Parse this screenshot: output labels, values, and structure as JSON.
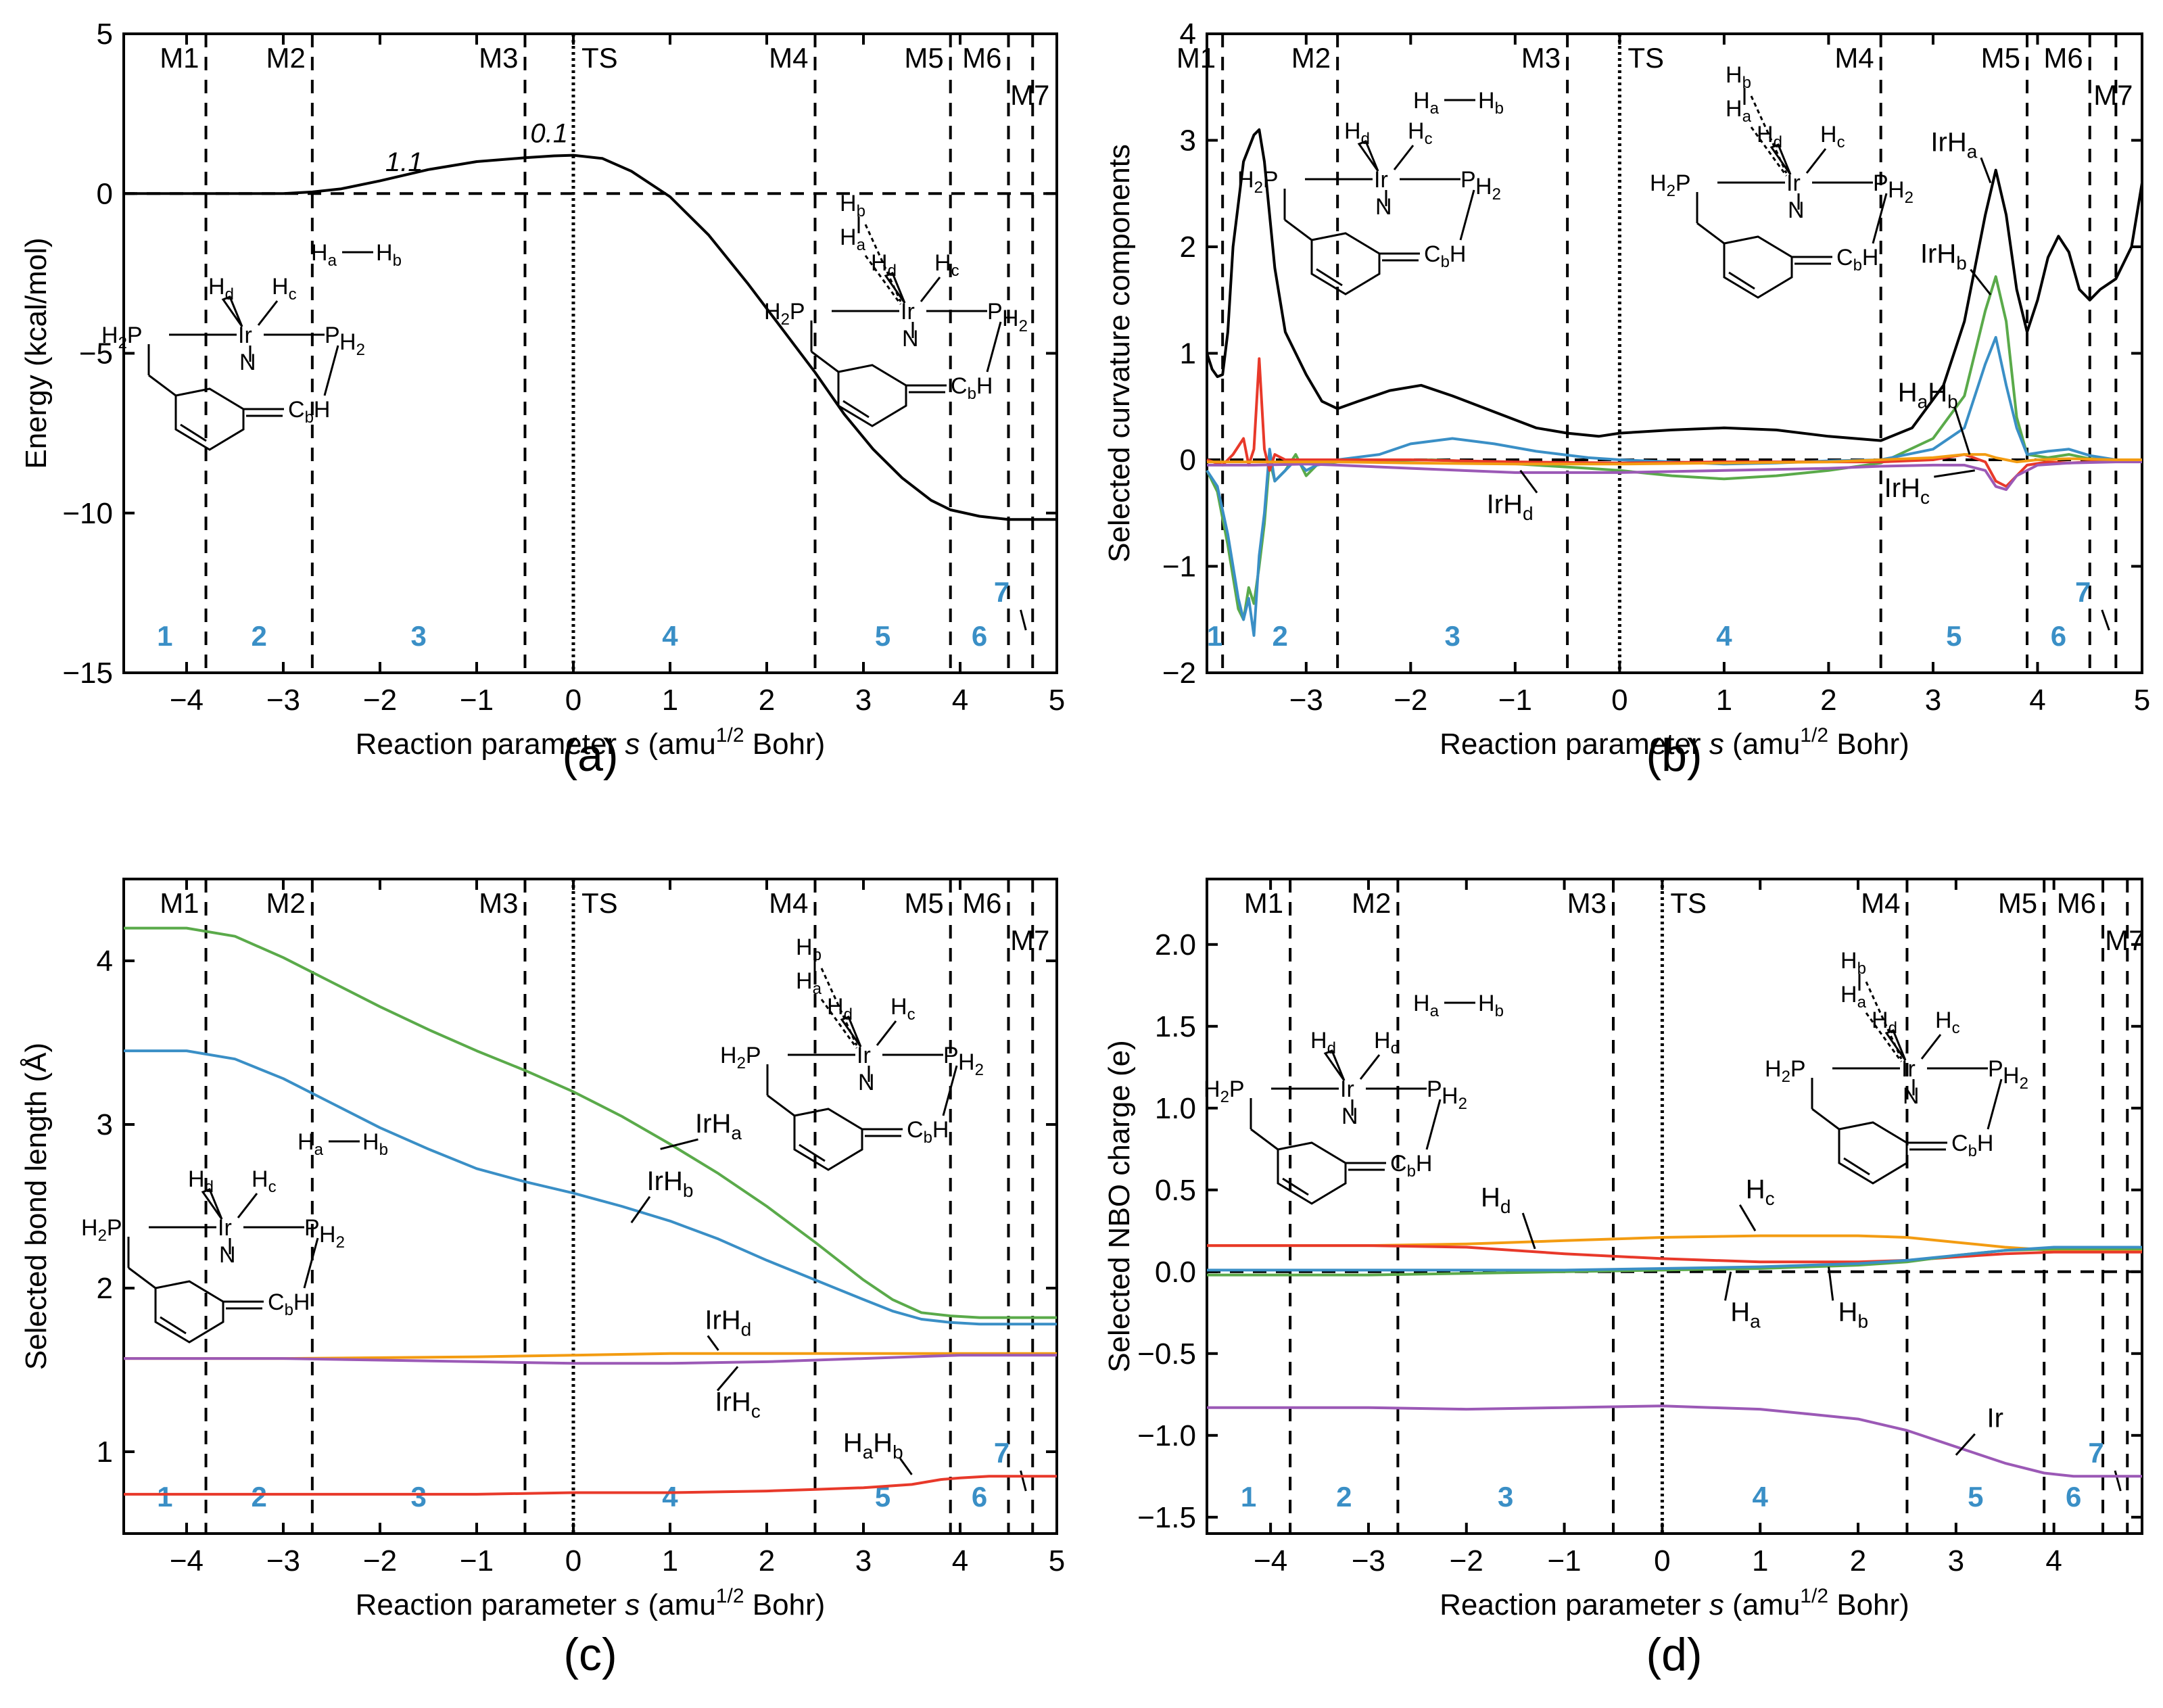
{
  "figure": {
    "panel_labels": [
      "(a)",
      "(b)",
      "(c)",
      "(d)"
    ],
    "xlabel": "Reaction parameter s (amu1/2 Bohr)",
    "xlabel_parts": {
      "pre": "Reaction parameter ",
      "s": "s",
      "mid": " (amu",
      "sup": "1/2",
      "post": " Bohr)"
    },
    "points_labels": [
      "M1",
      "M2",
      "M3",
      "TS",
      "M4",
      "M5",
      "M6",
      "M7"
    ],
    "region_labels": [
      "1",
      "2",
      "3",
      "4",
      "5",
      "6",
      "7"
    ],
    "hh_label": "Ha—Hb",
    "mol_text": {
      "H": "H",
      "Ir": "Ir",
      "N": "N",
      "P": "P",
      "C": "C"
    }
  },
  "chart_data": [
    {
      "panel": "(a)",
      "type": "line",
      "ylabel": "Energy (kcal/mol)",
      "xlim": [
        -4.65,
        5
      ],
      "ylim": [
        -15,
        5
      ],
      "xticks": [
        -4,
        -3,
        -2,
        -1,
        0,
        1,
        2,
        3,
        4,
        5
      ],
      "yticks": [
        -15,
        -10,
        -5,
        0,
        5
      ],
      "boundaries": {
        "M1": -3.8,
        "M2": -2.7,
        "M3": -0.5,
        "TS": 0,
        "M4": 2.5,
        "M5": 3.9,
        "M6": 4.5,
        "M7": 4.75
      },
      "annotations": [
        {
          "text": "1.1",
          "x": -1.75,
          "y": 0.7
        },
        {
          "text": "0.1",
          "x": -0.25,
          "y": 1.6
        }
      ],
      "series": [
        {
          "name": "Energy",
          "color": "#000000",
          "x": [
            -4.65,
            -4.0,
            -3.5,
            -3.0,
            -2.7,
            -2.4,
            -2.0,
            -1.5,
            -1.0,
            -0.5,
            -0.2,
            0.0,
            0.3,
            0.6,
            1.0,
            1.4,
            1.8,
            2.2,
            2.5,
            2.8,
            3.1,
            3.4,
            3.7,
            3.9,
            4.2,
            4.5,
            4.75,
            5.0
          ],
          "y": [
            0.0,
            0.0,
            0.0,
            0.0,
            0.05,
            0.15,
            0.4,
            0.75,
            1.0,
            1.12,
            1.18,
            1.2,
            1.1,
            0.7,
            -0.1,
            -1.3,
            -2.8,
            -4.4,
            -5.6,
            -6.9,
            -8.0,
            -8.9,
            -9.6,
            -9.9,
            -10.1,
            -10.2,
            -10.2,
            -10.2
          ]
        }
      ]
    },
    {
      "panel": "(b)",
      "type": "line",
      "ylabel": "Selected curvature components",
      "xlim": [
        -3.95,
        5
      ],
      "ylim": [
        -2,
        4
      ],
      "xticks": [
        -3,
        -2,
        -1,
        0,
        1,
        2,
        3,
        4,
        5
      ],
      "yticks": [
        -2,
        -1,
        0,
        1,
        2,
        3,
        4
      ],
      "boundaries": {
        "M1": -3.8,
        "M2": -2.7,
        "M3": -0.5,
        "TS": 0,
        "M4": 2.5,
        "M5": 3.9,
        "M6": 4.5,
        "M7": 4.75
      },
      "curve_labels": [
        "IrHa",
        "IrHb",
        "HaHb",
        "IrHc",
        "IrHd"
      ],
      "series": [
        {
          "name": "Total",
          "color": "#000000",
          "x": [
            -3.95,
            -3.9,
            -3.85,
            -3.8,
            -3.75,
            -3.7,
            -3.6,
            -3.5,
            -3.45,
            -3.4,
            -3.3,
            -3.2,
            -3.0,
            -2.85,
            -2.7,
            -2.5,
            -2.2,
            -1.9,
            -1.6,
            -1.2,
            -0.8,
            -0.5,
            -0.2,
            0.0,
            0.5,
            1.0,
            1.5,
            2.0,
            2.5,
            2.8,
            3.1,
            3.3,
            3.5,
            3.6,
            3.7,
            3.8,
            3.9,
            4.0,
            4.1,
            4.2,
            4.3,
            4.4,
            4.5,
            4.6,
            4.75,
            4.9,
            5.0
          ],
          "y": [
            1.0,
            0.85,
            0.78,
            0.8,
            1.2,
            2.0,
            2.8,
            3.05,
            3.1,
            2.8,
            1.8,
            1.2,
            0.8,
            0.55,
            0.48,
            0.55,
            0.65,
            0.7,
            0.6,
            0.45,
            0.3,
            0.25,
            0.22,
            0.25,
            0.28,
            0.3,
            0.28,
            0.22,
            0.18,
            0.3,
            0.7,
            1.3,
            2.3,
            2.72,
            2.3,
            1.6,
            1.2,
            1.5,
            1.9,
            2.1,
            1.95,
            1.6,
            1.5,
            1.6,
            1.7,
            2.0,
            2.6
          ]
        },
        {
          "name": "IrHa",
          "color": "#5aaa4a",
          "x": [
            -3.95,
            -3.85,
            -3.75,
            -3.65,
            -3.6,
            -3.55,
            -3.5,
            -3.45,
            -3.4,
            -3.35,
            -3.3,
            -3.2,
            -3.1,
            -3.0,
            -2.9,
            -2.7,
            -2.3,
            -1.8,
            -1.3,
            -0.8,
            -0.3,
            0.0,
            0.5,
            1.0,
            1.5,
            2.0,
            2.5,
            3.0,
            3.3,
            3.5,
            3.6,
            3.7,
            3.8,
            3.9,
            4.1,
            4.3,
            4.5,
            4.75,
            5.0
          ],
          "y": [
            -0.1,
            -0.3,
            -0.8,
            -1.4,
            -1.5,
            -1.2,
            -1.35,
            -1.0,
            -0.6,
            0.0,
            -0.2,
            -0.1,
            0.05,
            -0.15,
            -0.05,
            -0.02,
            -0.01,
            0.0,
            -0.02,
            -0.05,
            -0.08,
            -0.1,
            -0.15,
            -0.18,
            -0.15,
            -0.1,
            -0.03,
            0.2,
            0.6,
            1.4,
            1.72,
            1.3,
            0.4,
            0.05,
            0.02,
            0.05,
            0.01,
            0.0,
            0.0
          ]
        },
        {
          "name": "IrHb",
          "color": "#3a8fc6",
          "x": [
            -3.95,
            -3.85,
            -3.75,
            -3.65,
            -3.6,
            -3.55,
            -3.5,
            -3.45,
            -3.4,
            -3.35,
            -3.3,
            -3.2,
            -3.1,
            -3.0,
            -2.9,
            -2.7,
            -2.3,
            -2.0,
            -1.6,
            -1.2,
            -0.8,
            -0.3,
            0.0,
            0.5,
            1.0,
            1.5,
            2.0,
            2.5,
            3.0,
            3.3,
            3.5,
            3.6,
            3.7,
            3.8,
            3.9,
            4.1,
            4.3,
            4.5,
            4.75,
            5.0
          ],
          "y": [
            -0.1,
            -0.25,
            -0.7,
            -1.3,
            -1.5,
            -1.3,
            -1.65,
            -0.9,
            -0.5,
            0.1,
            -0.2,
            -0.1,
            0.0,
            -0.1,
            -0.05,
            0.0,
            0.05,
            0.15,
            0.2,
            0.15,
            0.08,
            0.02,
            0.0,
            -0.02,
            -0.04,
            -0.03,
            -0.01,
            0.0,
            0.1,
            0.3,
            0.9,
            1.15,
            0.7,
            0.3,
            0.05,
            0.08,
            0.1,
            0.04,
            0.0,
            0.0
          ]
        },
        {
          "name": "HaHb",
          "color": "#e8392a",
          "x": [
            -3.95,
            -3.8,
            -3.7,
            -3.6,
            -3.55,
            -3.5,
            -3.45,
            -3.4,
            -3.35,
            -3.3,
            -3.2,
            -3.0,
            -2.7,
            -2.0,
            -1.0,
            0.0,
            1.0,
            2.0,
            2.5,
            3.0,
            3.3,
            3.5,
            3.6,
            3.7,
            3.8,
            3.9,
            4.1,
            4.3,
            4.5,
            4.75,
            5.0
          ],
          "y": [
            0.0,
            -0.05,
            0.05,
            0.2,
            -0.05,
            0.1,
            0.95,
            0.1,
            -0.1,
            0.05,
            0.0,
            0.0,
            0.0,
            0.0,
            -0.02,
            -0.03,
            -0.02,
            -0.02,
            -0.02,
            0.0,
            0.05,
            -0.02,
            -0.2,
            -0.25,
            -0.15,
            -0.05,
            -0.02,
            -0.03,
            -0.02,
            0.0,
            0.0
          ]
        },
        {
          "name": "IrHc",
          "color": "#9b59b6",
          "x": [
            -3.95,
            -3.5,
            -3.0,
            -2.7,
            -2.0,
            -1.0,
            0.0,
            1.0,
            2.0,
            2.5,
            3.0,
            3.3,
            3.5,
            3.6,
            3.7,
            3.8,
            4.0,
            4.3,
            4.75,
            5.0
          ],
          "y": [
            -0.05,
            -0.05,
            -0.04,
            -0.05,
            -0.08,
            -0.12,
            -0.12,
            -0.1,
            -0.08,
            -0.06,
            -0.05,
            -0.05,
            -0.1,
            -0.25,
            -0.28,
            -0.15,
            -0.05,
            -0.03,
            -0.02,
            -0.02
          ]
        },
        {
          "name": "IrHd",
          "color": "#f39c12",
          "x": [
            -3.95,
            -3.5,
            -3.0,
            -2.7,
            -2.0,
            -1.0,
            0.0,
            1.0,
            2.0,
            2.5,
            3.0,
            3.3,
            3.5,
            3.6,
            3.7,
            3.8,
            4.0,
            4.3,
            4.75,
            5.0
          ],
          "y": [
            -0.02,
            -0.02,
            -0.02,
            -0.02,
            -0.03,
            -0.04,
            -0.04,
            -0.03,
            -0.02,
            0.0,
            0.02,
            0.05,
            0.05,
            0.02,
            0.0,
            -0.02,
            0.0,
            0.01,
            0.0,
            0.0
          ]
        }
      ]
    },
    {
      "panel": "(c)",
      "type": "line",
      "ylabel": "Selected bond length (Å)",
      "xlim": [
        -4.65,
        5
      ],
      "ylim": [
        0.5,
        4.5
      ],
      "xticks": [
        -4,
        -3,
        -2,
        -1,
        0,
        1,
        2,
        3,
        4,
        5
      ],
      "yticks": [
        1,
        2,
        3,
        4
      ],
      "boundaries": {
        "M1": -3.8,
        "M2": -2.7,
        "M3": -0.5,
        "TS": 0,
        "M4": 2.5,
        "M5": 3.9,
        "M6": 4.5,
        "M7": 4.75
      },
      "curve_labels": [
        "IrHa",
        "IrHb",
        "IrHd",
        "IrHc",
        "HaHb"
      ],
      "series": [
        {
          "name": "IrHa",
          "color": "#5aaa4a",
          "x": [
            -4.65,
            -4.0,
            -3.5,
            -3.0,
            -2.5,
            -2.0,
            -1.5,
            -1.0,
            -0.5,
            0.0,
            0.5,
            1.0,
            1.5,
            2.0,
            2.5,
            3.0,
            3.3,
            3.6,
            3.9,
            4.2,
            4.5,
            5.0
          ],
          "y": [
            4.2,
            4.2,
            4.15,
            4.02,
            3.87,
            3.72,
            3.58,
            3.45,
            3.33,
            3.2,
            3.05,
            2.88,
            2.7,
            2.5,
            2.28,
            2.05,
            1.93,
            1.85,
            1.83,
            1.82,
            1.82,
            1.82
          ]
        },
        {
          "name": "IrHb",
          "color": "#3a8fc6",
          "x": [
            -4.65,
            -4.0,
            -3.5,
            -3.0,
            -2.5,
            -2.0,
            -1.5,
            -1.0,
            -0.5,
            0.0,
            0.5,
            1.0,
            1.5,
            2.0,
            2.5,
            3.0,
            3.3,
            3.6,
            3.9,
            4.2,
            4.5,
            5.0
          ],
          "y": [
            3.45,
            3.45,
            3.4,
            3.28,
            3.13,
            2.98,
            2.85,
            2.73,
            2.65,
            2.58,
            2.5,
            2.41,
            2.3,
            2.17,
            2.05,
            1.93,
            1.86,
            1.81,
            1.79,
            1.78,
            1.78,
            1.78
          ]
        },
        {
          "name": "IrHd",
          "color": "#f39c12",
          "x": [
            -4.65,
            -3.0,
            -1.0,
            0.0,
            1.0,
            2.0,
            3.0,
            4.0,
            5.0
          ],
          "y": [
            1.57,
            1.57,
            1.58,
            1.59,
            1.6,
            1.6,
            1.6,
            1.6,
            1.6
          ]
        },
        {
          "name": "IrHc",
          "color": "#9b59b6",
          "x": [
            -4.65,
            -3.0,
            -2.0,
            -1.0,
            0.0,
            1.0,
            2.0,
            2.5,
            3.0,
            3.5,
            4.0,
            4.5,
            5.0
          ],
          "y": [
            1.57,
            1.57,
            1.56,
            1.55,
            1.54,
            1.54,
            1.55,
            1.56,
            1.57,
            1.58,
            1.59,
            1.59,
            1.59
          ]
        },
        {
          "name": "HaHb",
          "color": "#e8392a",
          "x": [
            -4.65,
            -3.0,
            -1.0,
            0.0,
            1.0,
            2.0,
            2.5,
            3.0,
            3.5,
            3.8,
            4.0,
            4.3,
            4.6,
            5.0
          ],
          "y": [
            0.74,
            0.74,
            0.74,
            0.75,
            0.75,
            0.76,
            0.77,
            0.78,
            0.8,
            0.83,
            0.84,
            0.85,
            0.85,
            0.85
          ]
        }
      ]
    },
    {
      "panel": "(d)",
      "type": "line",
      "ylabel": "Selected NBO charge (e)",
      "xlim": [
        -4.65,
        4.9
      ],
      "ylim": [
        -1.6,
        2.4
      ],
      "xticks": [
        -4,
        -3,
        -2,
        -1,
        0,
        1,
        2,
        3,
        4
      ],
      "yticks": [
        -1.5,
        -1.0,
        -0.5,
        0.0,
        0.5,
        1.0,
        1.5,
        2.0
      ],
      "boundaries": {
        "M1": -3.8,
        "M2": -2.7,
        "M3": -0.5,
        "TS": 0,
        "M4": 2.5,
        "M5": 3.9,
        "M6": 4.5,
        "M7": 4.75
      },
      "curve_labels": [
        "Hc",
        "Hd",
        "Ha",
        "Hb",
        "Ir"
      ],
      "series": [
        {
          "name": "Hc",
          "color": "#f39c12",
          "x": [
            -4.65,
            -3.0,
            -2.0,
            -1.0,
            0.0,
            1.0,
            2.0,
            2.5,
            3.0,
            3.5,
            4.0,
            4.9
          ],
          "y": [
            0.16,
            0.16,
            0.17,
            0.19,
            0.21,
            0.22,
            0.22,
            0.21,
            0.18,
            0.15,
            0.13,
            0.13
          ]
        },
        {
          "name": "Hd",
          "color": "#e8392a",
          "x": [
            -4.65,
            -3.0,
            -2.0,
            -1.0,
            0.0,
            1.0,
            2.0,
            2.5,
            3.0,
            3.5,
            4.0,
            4.9
          ],
          "y": [
            0.16,
            0.16,
            0.15,
            0.11,
            0.08,
            0.06,
            0.06,
            0.07,
            0.09,
            0.11,
            0.12,
            0.12
          ]
        },
        {
          "name": "Ha",
          "color": "#5aaa4a",
          "x": [
            -4.65,
            -3.0,
            -2.0,
            -1.0,
            0.0,
            1.0,
            2.0,
            2.5,
            3.0,
            3.5,
            4.0,
            4.9
          ],
          "y": [
            -0.02,
            -0.02,
            -0.01,
            0.0,
            0.01,
            0.02,
            0.04,
            0.06,
            0.1,
            0.13,
            0.14,
            0.14
          ]
        },
        {
          "name": "Hb",
          "color": "#3a8fc6",
          "x": [
            -4.65,
            -3.0,
            -2.0,
            -1.0,
            0.0,
            1.0,
            2.0,
            2.5,
            3.0,
            3.5,
            4.0,
            4.9
          ],
          "y": [
            0.01,
            0.01,
            0.01,
            0.01,
            0.02,
            0.03,
            0.05,
            0.07,
            0.1,
            0.13,
            0.15,
            0.15
          ]
        },
        {
          "name": "Ir",
          "color": "#9b59b6",
          "x": [
            -4.65,
            -3.0,
            -2.0,
            -1.0,
            0.0,
            0.5,
            1.0,
            1.5,
            2.0,
            2.5,
            3.0,
            3.5,
            3.9,
            4.2,
            4.5,
            4.9
          ],
          "y": [
            -0.83,
            -0.83,
            -0.84,
            -0.83,
            -0.82,
            -0.83,
            -0.84,
            -0.87,
            -0.9,
            -0.97,
            -1.07,
            -1.17,
            -1.23,
            -1.25,
            -1.25,
            -1.25
          ]
        }
      ]
    }
  ]
}
